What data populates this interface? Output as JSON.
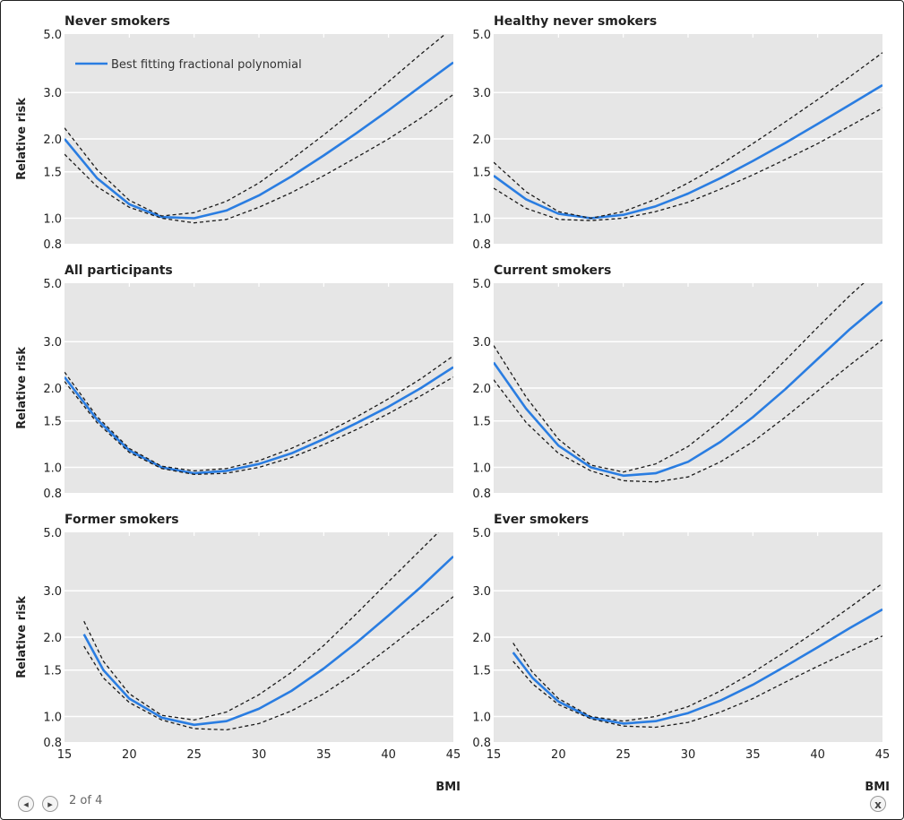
{
  "ui": {
    "page_indicator": "2 of 4",
    "prev_icon": "arrow-left-icon",
    "next_icon": "arrow-right-icon",
    "close_icon": "close-icon",
    "prev_symbol": "◂",
    "next_symbol": "▸",
    "close_symbol": "x"
  },
  "colors": {
    "estimate": "#2a7de1",
    "ci": "#1a1a1a",
    "panel_bg": "#e6e6e6",
    "grid": "#ffffff"
  },
  "legend": {
    "label": "Best fitting fractional polynomial"
  },
  "chart_data": [
    {
      "type": "line",
      "title": "Never smokers",
      "ylabel": "Relative risk",
      "xlabel": "",
      "xlim": [
        15,
        45
      ],
      "ylim": [
        0.8,
        5.0
      ],
      "yscale": "log",
      "xticks": [
        15,
        20,
        25,
        30,
        35,
        40,
        45
      ],
      "yticks": [
        0.8,
        1.0,
        1.5,
        2.0,
        3.0,
        5.0
      ],
      "x_tick_labels_shown": false,
      "grid": true,
      "legend": "top-left",
      "series": [
        {
          "name": "Best fitting fractional polynomial",
          "role": "estimate",
          "x": [
            15,
            17.5,
            20,
            22.5,
            25,
            27.5,
            30,
            32.5,
            35,
            37.5,
            40,
            42.5,
            45
          ],
          "y": [
            2.0,
            1.42,
            1.13,
            1.01,
            1.0,
            1.07,
            1.22,
            1.44,
            1.73,
            2.1,
            2.57,
            3.17,
            3.9
          ]
        },
        {
          "role": "ci_upper",
          "x": [
            15,
            17.5,
            20,
            22.5,
            25,
            27.5,
            30,
            32.5,
            35,
            37.5,
            40,
            42.5,
            45
          ],
          "y": [
            2.2,
            1.53,
            1.17,
            1.02,
            1.05,
            1.16,
            1.36,
            1.67,
            2.07,
            2.6,
            3.3,
            4.2,
            5.3
          ]
        },
        {
          "role": "ci_lower",
          "x": [
            15,
            17.5,
            20,
            22.5,
            25,
            27.5,
            30,
            32.5,
            35,
            37.5,
            40,
            42.5,
            45
          ],
          "y": [
            1.75,
            1.32,
            1.1,
            1.0,
            0.96,
            0.99,
            1.1,
            1.25,
            1.45,
            1.7,
            2.0,
            2.4,
            2.95
          ]
        }
      ]
    },
    {
      "type": "line",
      "title": "Healthy never smokers",
      "ylabel": "",
      "xlabel": "",
      "xlim": [
        15,
        45
      ],
      "ylim": [
        0.8,
        5.0
      ],
      "yscale": "log",
      "xticks": [
        15,
        20,
        25,
        30,
        35,
        40,
        45
      ],
      "yticks": [
        0.8,
        1.0,
        1.5,
        2.0,
        3.0,
        5.0
      ],
      "x_tick_labels_shown": false,
      "grid": true,
      "series": [
        {
          "name": "Best fitting fractional polynomial",
          "role": "estimate",
          "x": [
            15,
            17.5,
            20,
            22.5,
            25,
            27.5,
            30,
            32.5,
            35,
            37.5,
            40,
            42.5,
            45
          ],
          "y": [
            1.45,
            1.18,
            1.04,
            1.0,
            1.03,
            1.11,
            1.24,
            1.42,
            1.65,
            1.93,
            2.28,
            2.7,
            3.2
          ]
        },
        {
          "role": "ci_upper",
          "x": [
            15,
            17.5,
            20,
            22.5,
            25,
            27.5,
            30,
            32.5,
            35,
            37.5,
            40,
            42.5,
            45
          ],
          "y": [
            1.63,
            1.26,
            1.06,
            1.0,
            1.06,
            1.18,
            1.36,
            1.6,
            1.92,
            2.32,
            2.82,
            3.45,
            4.25
          ]
        },
        {
          "role": "ci_lower",
          "x": [
            15,
            17.5,
            20,
            22.5,
            25,
            27.5,
            30,
            32.5,
            35,
            37.5,
            40,
            42.5,
            45
          ],
          "y": [
            1.3,
            1.09,
            0.99,
            0.98,
            1.0,
            1.06,
            1.15,
            1.29,
            1.46,
            1.67,
            1.92,
            2.24,
            2.62
          ]
        }
      ]
    },
    {
      "type": "line",
      "title": "All participants",
      "ylabel": "Relative risk",
      "xlabel": "",
      "xlim": [
        15,
        45
      ],
      "ylim": [
        0.8,
        5.0
      ],
      "yscale": "log",
      "xticks": [
        15,
        20,
        25,
        30,
        35,
        40,
        45
      ],
      "yticks": [
        0.8,
        1.0,
        1.5,
        2.0,
        3.0,
        5.0
      ],
      "x_tick_labels_shown": false,
      "grid": true,
      "series": [
        {
          "name": "Best fitting fractional polynomial",
          "role": "estimate",
          "x": [
            15,
            17.5,
            20,
            22.5,
            25,
            27.5,
            30,
            32.5,
            35,
            37.5,
            40,
            42.5,
            45
          ],
          "y": [
            2.2,
            1.52,
            1.16,
            1.0,
            0.95,
            0.97,
            1.03,
            1.13,
            1.28,
            1.47,
            1.7,
            2.0,
            2.4
          ]
        },
        {
          "role": "ci_upper",
          "x": [
            15,
            17.5,
            20,
            22.5,
            25,
            27.5,
            30,
            32.5,
            35,
            37.5,
            40,
            42.5,
            45
          ],
          "y": [
            2.3,
            1.56,
            1.18,
            1.01,
            0.97,
            0.99,
            1.06,
            1.18,
            1.34,
            1.55,
            1.82,
            2.17,
            2.65
          ]
        },
        {
          "role": "ci_lower",
          "x": [
            15,
            17.5,
            20,
            22.5,
            25,
            27.5,
            30,
            32.5,
            35,
            37.5,
            40,
            42.5,
            45
          ],
          "y": [
            2.12,
            1.48,
            1.14,
            0.99,
            0.94,
            0.95,
            1.0,
            1.09,
            1.22,
            1.39,
            1.6,
            1.87,
            2.2
          ]
        }
      ]
    },
    {
      "type": "line",
      "title": "Current smokers",
      "ylabel": "",
      "xlabel": "",
      "xlim": [
        15,
        45
      ],
      "ylim": [
        0.8,
        5.0
      ],
      "yscale": "log",
      "xticks": [
        15,
        20,
        25,
        30,
        35,
        40,
        45
      ],
      "yticks": [
        0.8,
        1.0,
        1.5,
        2.0,
        3.0,
        5.0
      ],
      "x_tick_labels_shown": false,
      "grid": true,
      "series": [
        {
          "name": "Best fitting fractional polynomial",
          "role": "estimate",
          "x": [
            15,
            17.5,
            20,
            22.5,
            25,
            27.5,
            30,
            32.5,
            35,
            37.5,
            40,
            42.5,
            45
          ],
          "y": [
            2.5,
            1.67,
            1.21,
            1.0,
            0.93,
            0.95,
            1.05,
            1.25,
            1.55,
            1.98,
            2.58,
            3.35,
            4.25
          ]
        },
        {
          "role": "ci_upper",
          "x": [
            15,
            17.5,
            20,
            22.5,
            25,
            27.5,
            30,
            32.5,
            35,
            37.5,
            40,
            42.5,
            45
          ],
          "y": [
            2.9,
            1.85,
            1.28,
            1.02,
            0.96,
            1.03,
            1.2,
            1.5,
            1.92,
            2.55,
            3.4,
            4.5,
            5.8
          ]
        },
        {
          "role": "ci_lower",
          "x": [
            15,
            17.5,
            20,
            22.5,
            25,
            27.5,
            30,
            32.5,
            35,
            37.5,
            40,
            42.5,
            45
          ],
          "y": [
            2.15,
            1.48,
            1.13,
            0.97,
            0.89,
            0.88,
            0.92,
            1.05,
            1.25,
            1.55,
            1.95,
            2.45,
            3.05
          ]
        }
      ]
    },
    {
      "type": "line",
      "title": "Former smokers",
      "ylabel": "Relative risk",
      "xlabel": "BMI",
      "xlim": [
        15,
        45
      ],
      "ylim": [
        0.8,
        5.0
      ],
      "yscale": "log",
      "xticks": [
        15,
        20,
        25,
        30,
        35,
        40,
        45
      ],
      "yticks": [
        0.8,
        1.0,
        1.5,
        2.0,
        3.0,
        5.0
      ],
      "x_tick_labels_shown": true,
      "grid": true,
      "series": [
        {
          "name": "Best fitting fractional polynomial",
          "role": "estimate",
          "x": [
            16.5,
            18,
            20,
            22.5,
            25,
            27.5,
            30,
            32.5,
            35,
            37.5,
            40,
            42.5,
            45
          ],
          "y": [
            2.05,
            1.5,
            1.17,
            0.99,
            0.93,
            0.96,
            1.07,
            1.25,
            1.52,
            1.9,
            2.42,
            3.1,
            4.05
          ]
        },
        {
          "role": "ci_upper",
          "x": [
            16.5,
            18,
            20,
            22.5,
            25,
            27.5,
            30,
            32.5,
            35,
            37.5,
            40,
            42.5,
            45
          ],
          "y": [
            2.3,
            1.62,
            1.22,
            1.01,
            0.97,
            1.04,
            1.21,
            1.47,
            1.86,
            2.45,
            3.25,
            4.3,
            5.7
          ]
        },
        {
          "role": "ci_lower",
          "x": [
            16.5,
            18,
            20,
            22.5,
            25,
            27.5,
            30,
            32.5,
            35,
            37.5,
            40,
            42.5,
            45
          ],
          "y": [
            1.85,
            1.4,
            1.13,
            0.97,
            0.9,
            0.89,
            0.94,
            1.05,
            1.22,
            1.47,
            1.82,
            2.27,
            2.85
          ]
        }
      ]
    },
    {
      "type": "line",
      "title": "Ever smokers",
      "ylabel": "",
      "xlabel": "BMI",
      "xlim": [
        15,
        45
      ],
      "ylim": [
        0.8,
        5.0
      ],
      "yscale": "log",
      "xticks": [
        15,
        20,
        25,
        30,
        35,
        40,
        45
      ],
      "yticks": [
        0.8,
        1.0,
        1.5,
        2.0,
        3.0,
        5.0
      ],
      "x_tick_labels_shown": true,
      "grid": true,
      "series": [
        {
          "name": "Best fitting fractional polynomial",
          "role": "estimate",
          "x": [
            16.5,
            18,
            20,
            22.5,
            25,
            27.5,
            30,
            32.5,
            35,
            37.5,
            40,
            42.5,
            45
          ],
          "y": [
            1.75,
            1.4,
            1.14,
            0.99,
            0.94,
            0.96,
            1.03,
            1.15,
            1.32,
            1.55,
            1.83,
            2.17,
            2.55
          ]
        },
        {
          "role": "ci_upper",
          "x": [
            16.5,
            18,
            20,
            22.5,
            25,
            27.5,
            30,
            32.5,
            35,
            37.5,
            40,
            42.5,
            45
          ],
          "y": [
            1.9,
            1.47,
            1.17,
            1.0,
            0.96,
            1.0,
            1.09,
            1.25,
            1.47,
            1.76,
            2.13,
            2.6,
            3.2
          ]
        },
        {
          "role": "ci_lower",
          "x": [
            16.5,
            18,
            20,
            22.5,
            25,
            27.5,
            30,
            32.5,
            35,
            37.5,
            40,
            42.5,
            45
          ],
          "y": [
            1.62,
            1.33,
            1.11,
            0.98,
            0.92,
            0.91,
            0.95,
            1.04,
            1.17,
            1.35,
            1.55,
            1.77,
            2.02
          ]
        }
      ]
    }
  ]
}
